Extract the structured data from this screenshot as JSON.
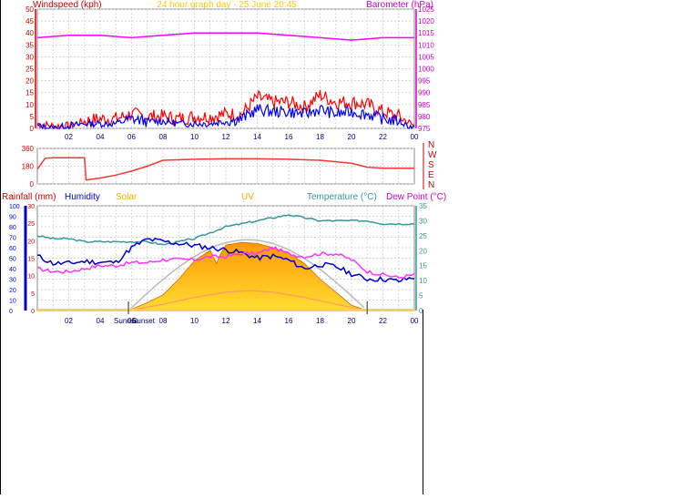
{
  "header": {
    "left_title": "Windspeed (kph)",
    "center_title": "24 hour graph day - 25 June 20:45",
    "right_title": "Barometer (hPa)"
  },
  "colors": {
    "wind_gust": "#ff0000",
    "wind_avg": "#0000ff",
    "barometer": "#ff00ff",
    "direction": "#ff3333",
    "humidity": "#0000cc",
    "temperature": "#339999",
    "dewpoint": "#ff33ff",
    "rain": "#cc0000",
    "solar_fill": "#ffaa00",
    "uv": "#ff9966",
    "grid": "#c8c8c8",
    "axis_red": "#cc0000",
    "axis_blue": "#0000cc",
    "axis_magenta": "#cc00cc",
    "axis_teal": "#339999"
  },
  "x_ticks": [
    "02",
    "04",
    "06",
    "08",
    "10",
    "12",
    "14",
    "16",
    "18",
    "20",
    "22",
    "00"
  ],
  "chart_data": [
    {
      "type": "line",
      "title": "24 hour graph day - 25 June 20:45",
      "xlabel": "",
      "ylabel": "Windspeed (kph)",
      "y2label": "Barometer (hPa)",
      "x_range_hours": [
        0,
        24
      ],
      "ylim": [
        0,
        50
      ],
      "y2lim": [
        975,
        1025
      ],
      "y_ticks": [
        "0",
        "5",
        "10",
        "15",
        "20",
        "25",
        "30",
        "35",
        "40",
        "45",
        "50"
      ],
      "y2_ticks": [
        "975",
        "980",
        "985",
        "990",
        "995",
        "1000",
        "1005",
        "1010",
        "1015",
        "1020",
        "1025"
      ],
      "series": [
        {
          "name": "Windspeed (kph)",
          "x": [
            0,
            1,
            2,
            3,
            4,
            5,
            6,
            7,
            8,
            9,
            10,
            11,
            12,
            13,
            14,
            15,
            16,
            17,
            18,
            19,
            20,
            21,
            22,
            23,
            24
          ],
          "values": [
            2,
            1,
            1,
            3,
            4,
            4,
            6,
            5,
            5,
            4,
            5,
            5,
            6,
            6,
            13,
            11,
            11,
            9,
            14,
            11,
            11,
            10,
            7,
            5,
            1
          ]
        },
        {
          "name": "Average wind",
          "x": [
            0,
            1,
            2,
            3,
            4,
            5,
            6,
            7,
            8,
            9,
            10,
            11,
            12,
            13,
            14,
            15,
            16,
            17,
            18,
            19,
            20,
            21,
            22,
            23,
            24
          ],
          "values": [
            1,
            0,
            1,
            2,
            2,
            2,
            4,
            3,
            3,
            2,
            2,
            2,
            3,
            4,
            8,
            7,
            7,
            6,
            8,
            6,
            7,
            6,
            4,
            3,
            0
          ]
        },
        {
          "name": "Barometer (hPa)",
          "x": [
            0,
            2,
            4,
            6,
            8,
            10,
            12,
            14,
            16,
            18,
            20,
            22,
            24
          ],
          "values": [
            1013,
            1014,
            1014,
            1013,
            1014,
            1015,
            1015,
            1015,
            1014,
            1013,
            1012,
            1013,
            1013
          ]
        }
      ],
      "grid": true,
      "legend": "top"
    },
    {
      "type": "line",
      "title": "",
      "ylabel": "",
      "ylim": [
        0,
        360
      ],
      "y_ticks": [
        "0",
        "180",
        "360"
      ],
      "compass_labels": [
        "N",
        "W",
        "S",
        "E",
        "N"
      ],
      "series": [
        {
          "name": "",
          "x": [
            0,
            0.5,
            1,
            3,
            3.1,
            4,
            5,
            6,
            7,
            8,
            10,
            12,
            14,
            16,
            18,
            20,
            21,
            22,
            23,
            24
          ],
          "values": [
            150,
            260,
            265,
            265,
            40,
            60,
            90,
            130,
            180,
            240,
            250,
            255,
            255,
            250,
            240,
            210,
            170,
            160,
            160,
            160
          ]
        }
      ],
      "grid": true
    },
    {
      "type": "area",
      "title": "",
      "ylabel": "Rainfall (mm)",
      "legend_entries": [
        "Rainfall (mm)",
        "Humidity",
        "Solar",
        "UV",
        "Temperature (°C)",
        "Dew Point (°C)"
      ],
      "humidity_ylim": [
        0,
        100
      ],
      "rain_ylim": [
        0,
        30
      ],
      "temp_ylim": [
        0,
        35
      ],
      "humidity_ticks": [
        "0",
        "10",
        "20",
        "30",
        "40",
        "50",
        "60",
        "70",
        "80",
        "90",
        "100"
      ],
      "rain_ticks": [
        "0",
        "5",
        "10",
        "15",
        "20",
        "25",
        "30"
      ],
      "temp_ticks": [
        "0",
        "5",
        "10",
        "15",
        "20",
        "25",
        "30",
        "35"
      ],
      "sunrise_label": "Sunrise",
      "sunset_label": "Sunset",
      "sunrise_hour": 5.8,
      "sunset_hour": 21.0,
      "series": [
        {
          "name": "Temperature (°C)",
          "x": [
            0,
            1,
            2,
            3,
            4,
            5,
            6,
            7,
            8,
            9,
            10,
            11,
            12,
            13,
            14,
            15,
            16,
            17,
            18,
            19,
            20,
            21,
            22,
            23,
            24
          ],
          "values": [
            25,
            24,
            24,
            23,
            23,
            23,
            23,
            23,
            22,
            23,
            24,
            26,
            28,
            29,
            30,
            31,
            32,
            31,
            30,
            30,
            30,
            30,
            29,
            29,
            29
          ]
        },
        {
          "name": "Humidity",
          "x": [
            0,
            1,
            2,
            3,
            4,
            5,
            6,
            7,
            8,
            9,
            10,
            11,
            12,
            13,
            14,
            15,
            16,
            17,
            18,
            19,
            20,
            21,
            22,
            23,
            24
          ],
          "values": [
            52,
            45,
            45,
            47,
            46,
            46,
            60,
            68,
            66,
            64,
            62,
            60,
            58,
            55,
            50,
            52,
            48,
            40,
            44,
            42,
            35,
            30,
            30,
            28,
            32
          ]
        },
        {
          "name": "Dew Point (°C)",
          "x": [
            0,
            1,
            2,
            3,
            4,
            5,
            6,
            7,
            8,
            9,
            10,
            11,
            12,
            13,
            14,
            15,
            16,
            17,
            18,
            19,
            20,
            21,
            22,
            23,
            24
          ],
          "values": [
            14,
            13,
            13,
            14,
            15,
            15,
            16,
            16,
            17,
            17,
            17,
            18,
            18,
            19,
            19,
            21,
            19,
            18,
            19,
            19,
            17,
            13,
            12,
            11,
            12
          ]
        },
        {
          "name": "Solar",
          "x": [
            5.8,
            7,
            8,
            9,
            10,
            11,
            11.4,
            11.7,
            12,
            13,
            14,
            15,
            16,
            17,
            18,
            19,
            20,
            21
          ],
          "values": [
            0,
            15,
            30,
            60,
            95,
            115,
            90,
            110,
            125,
            130,
            128,
            120,
            110,
            90,
            60,
            35,
            10,
            0
          ]
        },
        {
          "name": "UV",
          "x": [
            5.8,
            8,
            10,
            12,
            13.5,
            15,
            17,
            19,
            21
          ],
          "values": [
            0,
            12,
            25,
            35,
            38,
            35,
            25,
            12,
            0
          ]
        }
      ],
      "grid": true
    }
  ]
}
